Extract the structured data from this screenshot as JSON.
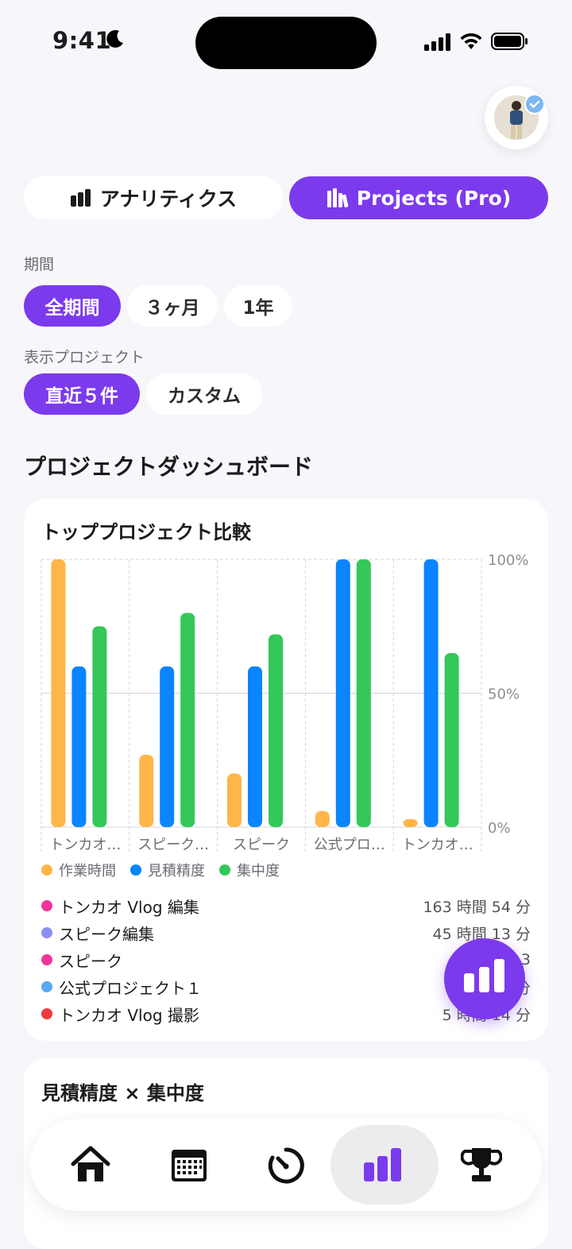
{
  "status_bar": {
    "time": "9:41"
  },
  "tabs": {
    "analytics_label": "アナリティクス",
    "projects_label": "Projects (Pro)"
  },
  "filters": {
    "period_label": "期間",
    "period_options": [
      "全期間",
      "３ヶ月",
      "1年"
    ],
    "project_label": "表示プロジェクト",
    "project_options": [
      "直近５件",
      "カスタム"
    ]
  },
  "dashboard_title": "プロジェクトダッシュボード",
  "comparison_card": {
    "title": "トッププロジェクト比較",
    "chart_data": {
      "type": "bar",
      "categories": [
        "トンカオ…",
        "スピーク…",
        "スピーク",
        "公式プロ…",
        "トンカオ…"
      ],
      "series": [
        {
          "name": "作業時間",
          "color": "#ffb547",
          "values": [
            100,
            27,
            20,
            6,
            3
          ]
        },
        {
          "name": "見積精度",
          "color": "#0a84ff",
          "values": [
            60,
            60,
            60,
            100,
            100
          ]
        },
        {
          "name": "集中度",
          "color": "#34c759",
          "values": [
            75,
            80,
            72,
            100,
            65
          ]
        }
      ],
      "ylim": [
        0,
        100
      ],
      "yticks": [
        "0%",
        "50%",
        "100%"
      ],
      "legend_position": "bottom-left"
    },
    "projects": [
      {
        "name": "トンカオ Vlog 編集",
        "time": "163 時間 54 分",
        "color": "#f2339c"
      },
      {
        "name": "スピーク編集",
        "time": "45 時間 13 分",
        "color": "#8b8ef0"
      },
      {
        "name": "スピーク",
        "time": "3",
        "color": "#f2339c"
      },
      {
        "name": "公式プロジェクト１",
        "time": "分",
        "color": "#5aa7f3"
      },
      {
        "name": "トンカオ Vlog 撮影",
        "time": "5 時間 14 分",
        "color": "#f0393e"
      }
    ]
  },
  "accuracy_card": {
    "title": "見積精度 × 集中度"
  },
  "bottom_nav": [
    "home-icon",
    "calendar-icon",
    "timer-icon",
    "analytics-icon",
    "trophy-icon"
  ]
}
